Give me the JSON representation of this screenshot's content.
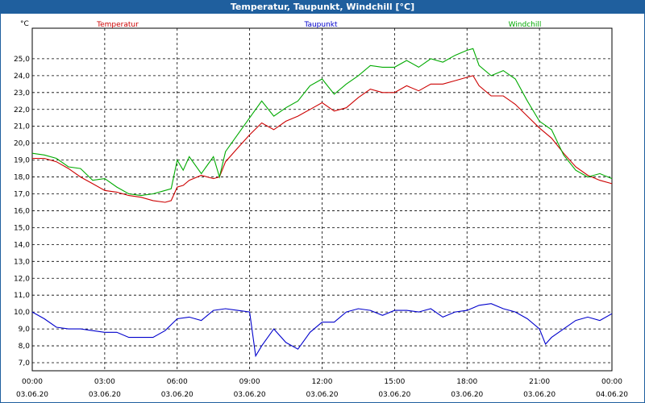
{
  "window": {
    "title": "Temperatur, Taupunkt, Windchill [°C]"
  },
  "chart_data": {
    "type": "line",
    "title": "Temperatur, Taupunkt, Windchill [°C]",
    "ylabel": "°C",
    "ylim": [
      6.5,
      26.2
    ],
    "xlim": [
      0,
      24
    ],
    "y_ticks": [
      "7,0",
      "8,0",
      "9,0",
      "10,0",
      "11,0",
      "12,0",
      "13,0",
      "14,0",
      "15,0",
      "16,0",
      "17,0",
      "18,0",
      "19,0",
      "20,0",
      "21,0",
      "22,0",
      "23,0",
      "24,0",
      "25,0"
    ],
    "x_ticks": [
      {
        "time": "00:00",
        "date": "03.06.20"
      },
      {
        "time": "03:00",
        "date": "03.06.20"
      },
      {
        "time": "06:00",
        "date": "03.06.20"
      },
      {
        "time": "09:00",
        "date": "03.06.20"
      },
      {
        "time": "12:00",
        "date": "03.06.20"
      },
      {
        "time": "15:00",
        "date": "03.06.20"
      },
      {
        "time": "18:00",
        "date": "03.06.20"
      },
      {
        "time": "21:00",
        "date": "03.06.20"
      },
      {
        "time": "00:00",
        "date": "04.06.20"
      }
    ],
    "grid": true,
    "series": [
      {
        "name": "Temperatur",
        "color": "#cc0000",
        "x": [
          0,
          0.5,
          1,
          1.5,
          2,
          2.5,
          3,
          3.5,
          4,
          4.5,
          5,
          5.5,
          5.75,
          6,
          6.25,
          6.5,
          7,
          7.5,
          7.75,
          8,
          8.5,
          9,
          9.5,
          10,
          10.5,
          11,
          11.5,
          12,
          12.5,
          13,
          13.5,
          14,
          14.5,
          15,
          15.5,
          16,
          16.5,
          17,
          17.5,
          18,
          18.25,
          18.5,
          19,
          19.5,
          20,
          20.5,
          21,
          21.5,
          22,
          22.5,
          23,
          23.5,
          24
        ],
        "values": [
          19.1,
          19.1,
          18.9,
          18.5,
          18.0,
          17.6,
          17.2,
          17.1,
          16.9,
          16.8,
          16.6,
          16.5,
          16.6,
          17.4,
          17.5,
          17.8,
          18.1,
          17.9,
          18.0,
          18.9,
          19.7,
          20.5,
          21.2,
          20.8,
          21.3,
          21.6,
          22.0,
          22.4,
          21.9,
          22.1,
          22.7,
          23.2,
          23.0,
          23.0,
          23.4,
          23.1,
          23.5,
          23.5,
          23.7,
          23.9,
          24.0,
          23.4,
          22.8,
          22.8,
          22.3,
          21.6,
          20.9,
          20.3,
          19.4,
          18.6,
          18.1,
          17.8,
          17.6
        ]
      },
      {
        "name": "Taupunkt",
        "color": "#0000cc",
        "x": [
          0,
          0.5,
          1,
          1.5,
          2,
          2.5,
          3,
          3.5,
          4,
          4.5,
          5,
          5.5,
          6,
          6.5,
          7,
          7.5,
          8,
          8.5,
          9,
          9.25,
          9.5,
          10,
          10.5,
          11,
          11.5,
          12,
          12.5,
          13,
          13.5,
          14,
          14.5,
          15,
          15.5,
          16,
          16.5,
          17,
          17.5,
          18,
          18.5,
          19,
          19.5,
          20,
          20.5,
          21,
          21.25,
          21.5,
          22,
          22.5,
          23,
          23.5,
          24
        ],
        "values": [
          10.0,
          9.6,
          9.1,
          9.0,
          9.0,
          8.9,
          8.8,
          8.8,
          8.5,
          8.5,
          8.5,
          8.9,
          9.6,
          9.7,
          9.5,
          10.1,
          10.2,
          10.1,
          10.0,
          7.4,
          8.0,
          9.0,
          8.2,
          7.8,
          8.8,
          9.4,
          9.4,
          10.0,
          10.2,
          10.1,
          9.8,
          10.1,
          10.1,
          10.0,
          10.2,
          9.7,
          10.0,
          10.1,
          10.4,
          10.5,
          10.2,
          10.0,
          9.6,
          9.0,
          8.1,
          8.5,
          9.0,
          9.5,
          9.7,
          9.5,
          9.9
        ]
      },
      {
        "name": "Windchill",
        "color": "#00aa00",
        "x": [
          0,
          0.5,
          1,
          1.5,
          2,
          2.5,
          3,
          3.5,
          4,
          4.5,
          5,
          5.5,
          5.75,
          6,
          6.25,
          6.5,
          7,
          7.5,
          7.75,
          8,
          8.5,
          9,
          9.5,
          10,
          10.5,
          11,
          11.5,
          12,
          12.5,
          13,
          13.5,
          14,
          14.5,
          15,
          15.5,
          16,
          16.5,
          17,
          17.5,
          18,
          18.25,
          18.5,
          19,
          19.5,
          20,
          20.5,
          21,
          21.5,
          22,
          22.5,
          23,
          23.5,
          24
        ],
        "values": [
          19.4,
          19.3,
          19.1,
          18.6,
          18.5,
          17.8,
          17.9,
          17.4,
          17.0,
          16.9,
          17.0,
          17.2,
          17.3,
          19.0,
          18.4,
          19.2,
          18.2,
          19.2,
          18.0,
          19.5,
          20.5,
          21.5,
          22.5,
          21.6,
          22.1,
          22.5,
          23.4,
          23.8,
          22.9,
          23.5,
          24.0,
          24.6,
          24.5,
          24.5,
          24.9,
          24.5,
          25.0,
          24.8,
          25.2,
          25.5,
          25.6,
          24.6,
          24.0,
          24.3,
          23.8,
          22.5,
          21.3,
          20.8,
          19.3,
          18.4,
          18.0,
          18.2,
          17.9
        ]
      }
    ]
  }
}
